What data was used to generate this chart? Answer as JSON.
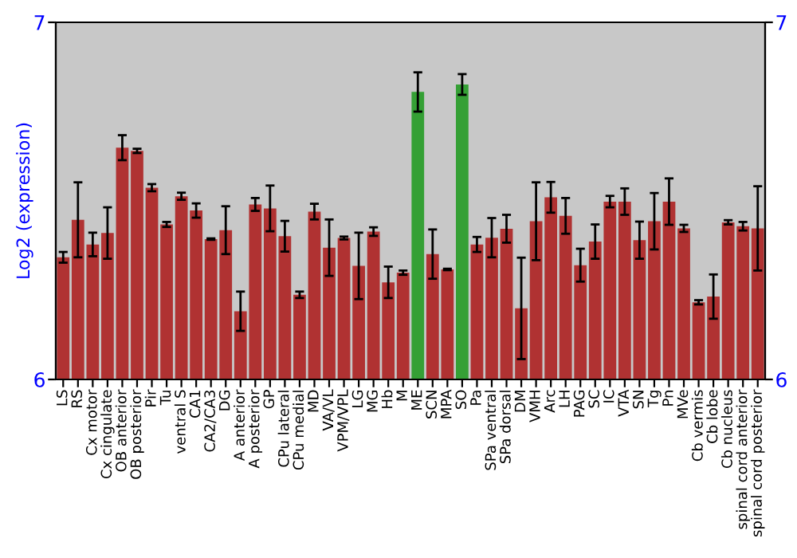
{
  "chart_data": {
    "type": "bar",
    "ylabel": "Log2 (expression)",
    "categories": [
      "LS",
      "RS",
      "Cx motor",
      "Cx cingulate",
      "OB anterior",
      "OB posterior",
      "Pir",
      "Tu",
      "ventral S",
      "CA1",
      "CA2/CA3",
      "DG",
      "A anterior",
      "A posterior",
      "GP",
      "CPu lateral",
      "CPu medial",
      "MD",
      "VA/VL",
      "VPM/VPL",
      "LG",
      "MG",
      "Hb",
      "M",
      "ME",
      "SCN",
      "MPA",
      "SO",
      "Pa",
      "SPa ventral",
      "SPa dorsal",
      "DM",
      "VMH",
      "Arc",
      "LH",
      "PAG",
      "SC",
      "IC",
      "VTA",
      "SN",
      "Tg",
      "Pn",
      "MVe",
      "Cb vermis",
      "Cb lobe",
      "Cb nucleus",
      "spinal cord anterior",
      "spinal cord posterior"
    ],
    "values": [
      6.342,
      6.447,
      6.378,
      6.41,
      6.649,
      6.64,
      6.537,
      6.434,
      6.513,
      6.473,
      6.393,
      6.418,
      6.191,
      6.49,
      6.479,
      6.401,
      6.237,
      6.47,
      6.369,
      6.396,
      6.318,
      6.414,
      6.272,
      6.299,
      6.805,
      6.351,
      6.308,
      6.826,
      6.378,
      6.397,
      6.422,
      6.199,
      6.443,
      6.51,
      6.458,
      6.32,
      6.386,
      6.498,
      6.498,
      6.39,
      6.443,
      6.498,
      6.423,
      6.216,
      6.232,
      6.44,
      6.429,
      6.423
    ],
    "errors": [
      0.015,
      0.105,
      0.033,
      0.072,
      0.035,
      0.006,
      0.01,
      0.007,
      0.01,
      0.02,
      0.002,
      0.067,
      0.055,
      0.018,
      0.064,
      0.043,
      0.009,
      0.022,
      0.079,
      0.004,
      0.093,
      0.012,
      0.044,
      0.006,
      0.055,
      0.069,
      0.002,
      0.029,
      0.021,
      0.055,
      0.039,
      0.142,
      0.109,
      0.043,
      0.05,
      0.046,
      0.048,
      0.016,
      0.037,
      0.052,
      0.079,
      0.065,
      0.01,
      0.006,
      0.062,
      0.006,
      0.012,
      0.118
    ],
    "colors": [
      "#b03232",
      "#b03232",
      "#b03232",
      "#b03232",
      "#b03232",
      "#b03232",
      "#b03232",
      "#b03232",
      "#b03232",
      "#b03232",
      "#b03232",
      "#b03232",
      "#b03232",
      "#b03232",
      "#b03232",
      "#b03232",
      "#b03232",
      "#b03232",
      "#b03232",
      "#b03232",
      "#b03232",
      "#b03232",
      "#b03232",
      "#b03232",
      "#35a035",
      "#b03232",
      "#b03232",
      "#35a035",
      "#b03232",
      "#b03232",
      "#b03232",
      "#b03232",
      "#b03232",
      "#b03232",
      "#b03232",
      "#b03232",
      "#b03232",
      "#b03232",
      "#b03232",
      "#b03232",
      "#b03232",
      "#b03232",
      "#b03232",
      "#b03232",
      "#b03232",
      "#b03232",
      "#b03232",
      "#b03232"
    ],
    "ylim": [
      6,
      7
    ],
    "yticks": [
      6,
      7
    ],
    "y2lim": [
      6,
      7
    ],
    "y2ticks": [
      6,
      7
    ],
    "grid": false,
    "legend": false
  }
}
